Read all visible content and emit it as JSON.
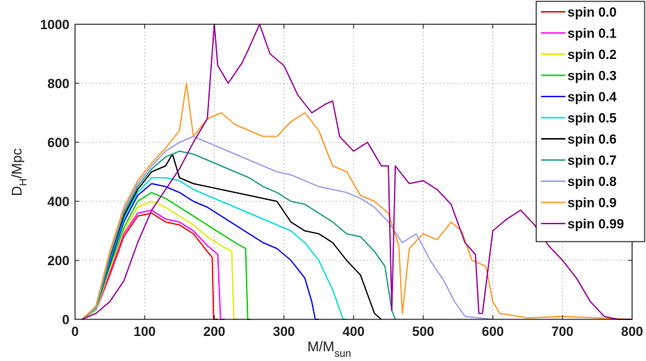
{
  "chart_data": {
    "type": "line",
    "xlabel": "M/M",
    "xlabel_sub": "sun",
    "ylabel": "D",
    "ylabel_sub": "H",
    "ylabel_suffix": "/Mpc",
    "xlim": [
      0,
      800
    ],
    "ylim": [
      0,
      1000
    ],
    "xticks": [
      0,
      100,
      200,
      300,
      400,
      500,
      600,
      700,
      800
    ],
    "yticks": [
      0,
      200,
      400,
      600,
      800,
      1000
    ],
    "grid": true,
    "legend_position": "top-right",
    "series": [
      {
        "name": "spin 0.0",
        "color": "#ff0000",
        "x": [
          10,
          30,
          50,
          70,
          90,
          110,
          130,
          150,
          170,
          180,
          190,
          197,
          199,
          201,
          205
        ],
        "y": [
          0,
          30,
          150,
          280,
          350,
          360,
          330,
          320,
          290,
          260,
          230,
          210,
          0,
          0,
          0
        ]
      },
      {
        "name": "spin 0.1",
        "color": "#ff00ff",
        "x": [
          10,
          30,
          50,
          70,
          90,
          110,
          130,
          150,
          170,
          190,
          205,
          209,
          211,
          215
        ],
        "y": [
          0,
          30,
          160,
          290,
          360,
          370,
          340,
          330,
          300,
          250,
          220,
          0,
          0,
          0
        ]
      },
      {
        "name": "spin 0.2",
        "color": "#e8e800",
        "x": [
          10,
          30,
          50,
          70,
          90,
          110,
          130,
          150,
          170,
          190,
          210,
          225,
          228,
          232
        ],
        "y": [
          0,
          30,
          170,
          300,
          380,
          400,
          380,
          350,
          320,
          280,
          250,
          230,
          0,
          0
        ]
      },
      {
        "name": "spin 0.3",
        "color": "#00cc00",
        "x": [
          10,
          30,
          50,
          70,
          90,
          110,
          130,
          150,
          170,
          190,
          210,
          230,
          245,
          248,
          252
        ],
        "y": [
          0,
          35,
          180,
          310,
          400,
          430,
          410,
          380,
          350,
          320,
          290,
          260,
          240,
          0,
          0
        ]
      },
      {
        "name": "spin 0.4",
        "color": "#0000ff",
        "x": [
          10,
          30,
          50,
          70,
          90,
          110,
          130,
          150,
          170,
          190,
          210,
          230,
          250,
          270,
          290,
          310,
          330,
          340,
          345,
          350
        ],
        "y": [
          0,
          35,
          190,
          330,
          420,
          460,
          450,
          430,
          400,
          380,
          350,
          320,
          290,
          260,
          240,
          200,
          140,
          60,
          0,
          0
        ]
      },
      {
        "name": "spin 0.5",
        "color": "#00dcdc",
        "x": [
          10,
          30,
          50,
          70,
          90,
          110,
          130,
          150,
          170,
          190,
          210,
          230,
          250,
          270,
          290,
          310,
          330,
          350,
          370,
          385,
          390
        ],
        "y": [
          0,
          35,
          200,
          340,
          430,
          480,
          480,
          470,
          440,
          420,
          400,
          380,
          360,
          340,
          320,
          300,
          260,
          200,
          100,
          0,
          0
        ]
      },
      {
        "name": "spin 0.6",
        "color": "#000000",
        "x": [
          10,
          30,
          50,
          70,
          90,
          110,
          130,
          140,
          150,
          170,
          190,
          210,
          230,
          250,
          270,
          290,
          310,
          330,
          350,
          370,
          390,
          410,
          430,
          440
        ],
        "y": [
          0,
          40,
          210,
          350,
          440,
          500,
          520,
          560,
          480,
          460,
          450,
          440,
          430,
          420,
          410,
          400,
          330,
          300,
          290,
          260,
          200,
          150,
          20,
          0
        ]
      },
      {
        "name": "spin 0.7",
        "color": "#1a9a80",
        "x": [
          10,
          30,
          50,
          70,
          90,
          110,
          130,
          150,
          170,
          190,
          210,
          230,
          250,
          270,
          290,
          310,
          330,
          350,
          370,
          390,
          410,
          430,
          445,
          455,
          460
        ],
        "y": [
          0,
          40,
          215,
          360,
          450,
          510,
          550,
          570,
          560,
          540,
          520,
          500,
          480,
          450,
          430,
          400,
          390,
          360,
          330,
          290,
          280,
          230,
          180,
          30,
          0
        ]
      },
      {
        "name": "spin 0.8",
        "color": "#9a9aee",
        "x": [
          10,
          30,
          50,
          70,
          90,
          110,
          130,
          150,
          170,
          190,
          210,
          230,
          250,
          270,
          290,
          310,
          330,
          350,
          370,
          390,
          410,
          430,
          450,
          470,
          490,
          510,
          530,
          545,
          560,
          600
        ],
        "y": [
          0,
          40,
          220,
          370,
          460,
          520,
          570,
          600,
          620,
          600,
          580,
          560,
          540,
          520,
          500,
          490,
          470,
          450,
          440,
          430,
          410,
          380,
          330,
          260,
          290,
          200,
          130,
          60,
          10,
          0
        ]
      },
      {
        "name": "spin 0.9",
        "color": "#ff9922",
        "x": [
          10,
          30,
          50,
          70,
          90,
          110,
          130,
          150,
          160,
          170,
          190,
          210,
          230,
          250,
          270,
          290,
          310,
          330,
          350,
          370,
          390,
          410,
          430,
          450,
          465,
          470,
          480,
          500,
          520,
          540,
          555,
          570,
          590,
          600,
          610,
          650,
          700,
          800
        ],
        "y": [
          0,
          45,
          230,
          380,
          470,
          530,
          580,
          640,
          800,
          620,
          680,
          700,
          660,
          640,
          620,
          620,
          670,
          700,
          640,
          520,
          500,
          420,
          400,
          360,
          250,
          20,
          240,
          290,
          270,
          330,
          300,
          200,
          180,
          60,
          20,
          5,
          10,
          0
        ]
      },
      {
        "name": "spin 0.99",
        "color": "#990099",
        "x": [
          10,
          30,
          50,
          70,
          90,
          110,
          130,
          150,
          170,
          190,
          200,
          205,
          220,
          240,
          250,
          265,
          280,
          300,
          320,
          340,
          360,
          370,
          380,
          400,
          420,
          440,
          450,
          455,
          460,
          480,
          500,
          520,
          540,
          560,
          575,
          580,
          585,
          600,
          610,
          620,
          640,
          660,
          680,
          700,
          720,
          740,
          760,
          780,
          800
        ],
        "y": [
          0,
          20,
          60,
          130,
          260,
          370,
          440,
          510,
          600,
          680,
          1000,
          860,
          800,
          870,
          920,
          1000,
          900,
          860,
          760,
          700,
          730,
          740,
          620,
          570,
          600,
          520,
          520,
          30,
          520,
          460,
          470,
          440,
          390,
          260,
          220,
          20,
          20,
          300,
          320,
          340,
          370,
          320,
          250,
          200,
          140,
          60,
          10,
          0,
          0
        ]
      }
    ]
  }
}
